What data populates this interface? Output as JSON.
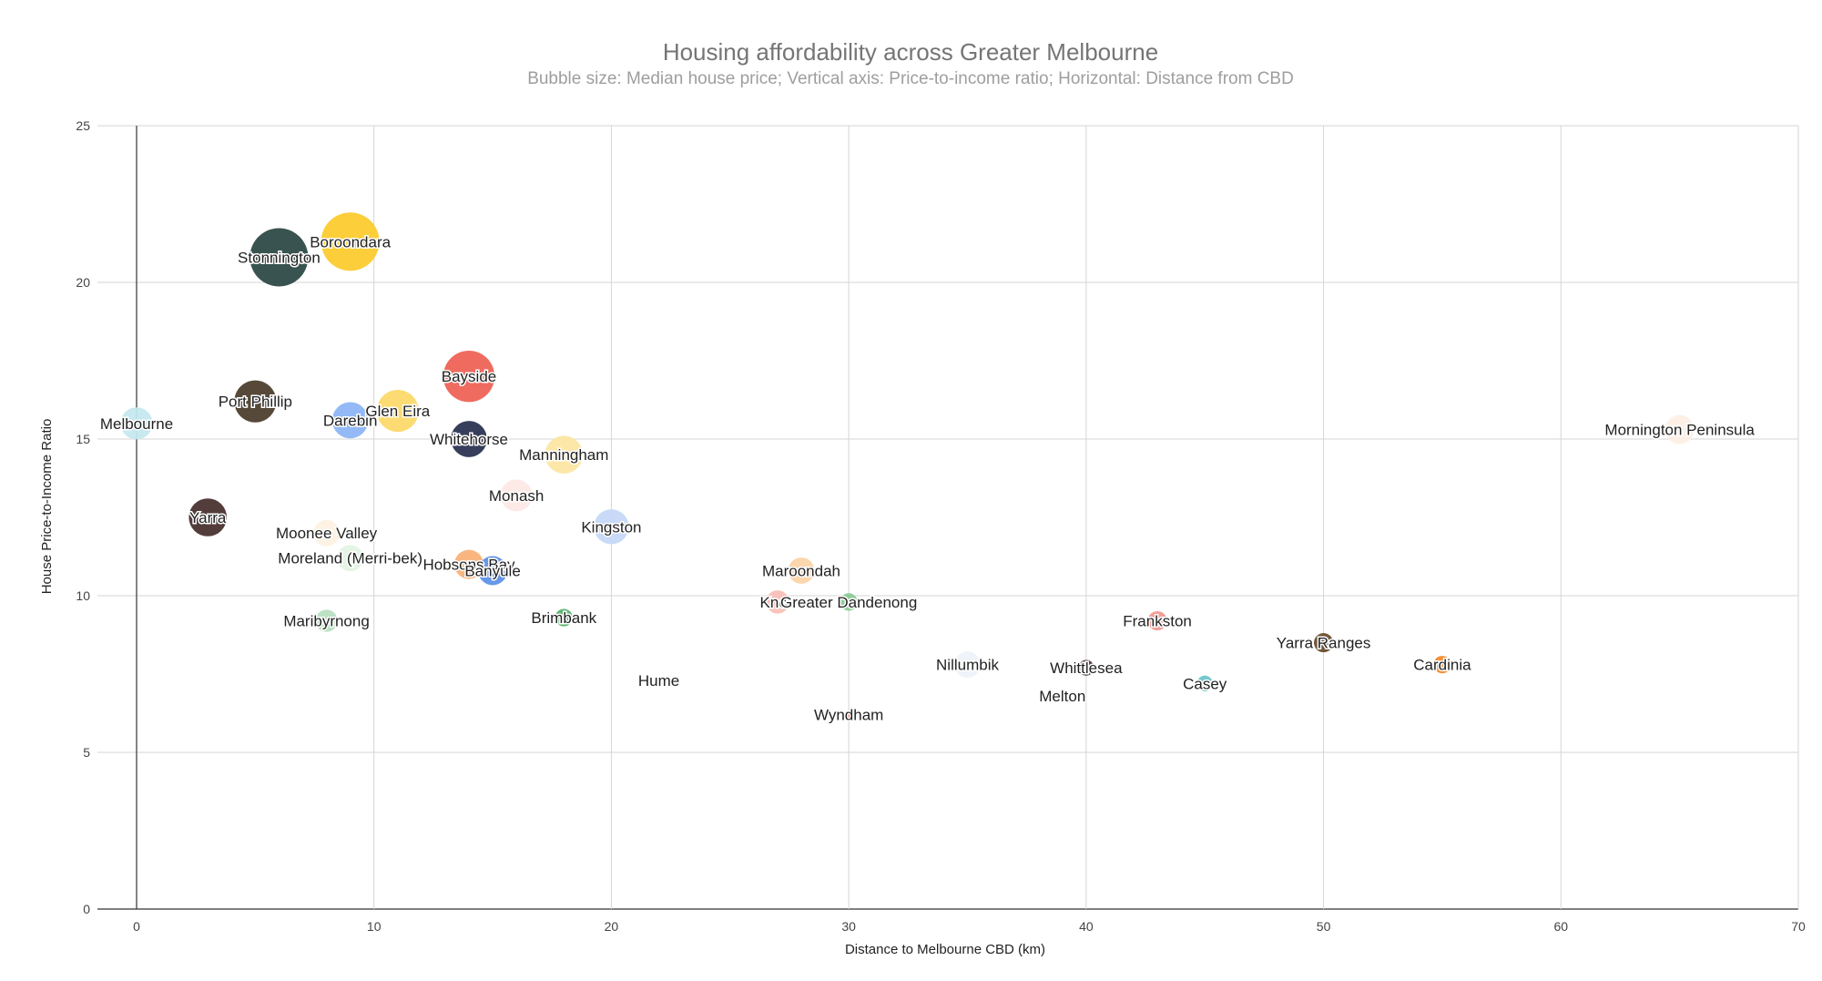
{
  "chart_data": {
    "type": "scatter",
    "title": "Housing affordability across Greater Melbourne",
    "subtitle": "Bubble size: Median house price; Vertical axis: Price-to-income ratio; Horizontal: Distance from CBD",
    "xlabel": "Distance to Melbourne CBD (km)",
    "ylabel": "House Price-to-Income Ratio",
    "xlim": [
      0,
      70
    ],
    "ylim": [
      0,
      25
    ],
    "xticks": [
      0,
      10,
      20,
      30,
      40,
      50,
      60,
      70
    ],
    "yticks": [
      0,
      5,
      10,
      15,
      20,
      25
    ],
    "grid": true,
    "bubble_size_basis": "Median house price",
    "points": [
      {
        "name": "Melbourne",
        "x": 0,
        "y": 15.5,
        "size": 0.55,
        "color": "#c4e8ee"
      },
      {
        "name": "Yarra",
        "x": 3,
        "y": 12.5,
        "size": 0.65,
        "color": "#4a3330"
      },
      {
        "name": "Port Phillip",
        "x": 5,
        "y": 16.2,
        "size": 0.72,
        "color": "#4e3f2e"
      },
      {
        "name": "Stonnington",
        "x": 6,
        "y": 20.8,
        "size": 1.0,
        "color": "#2e4a47"
      },
      {
        "name": "Moonee Valley",
        "x": 8,
        "y": 12.0,
        "size": 0.45,
        "color": "#fdf1e3"
      },
      {
        "name": "Maribyrnong",
        "x": 8,
        "y": 9.2,
        "size": 0.38,
        "color": "#b9dfc1"
      },
      {
        "name": "Boroondara",
        "x": 9,
        "y": 21.3,
        "size": 1.0,
        "color": "#fccb2f"
      },
      {
        "name": "Darebin",
        "x": 9,
        "y": 15.6,
        "size": 0.62,
        "color": "#8db5f5"
      },
      {
        "name": "Moreland (Merri-bek)",
        "x": 9,
        "y": 11.2,
        "size": 0.45,
        "color": "#e3f3e4"
      },
      {
        "name": "Glen Eira",
        "x": 11,
        "y": 15.9,
        "size": 0.72,
        "color": "#fdd96b"
      },
      {
        "name": "Bayside",
        "x": 14,
        "y": 17.0,
        "size": 0.88,
        "color": "#ee6357"
      },
      {
        "name": "Whitehorse",
        "x": 14,
        "y": 15.0,
        "size": 0.62,
        "color": "#2b3452"
      },
      {
        "name": "Hobsons Bay",
        "x": 14,
        "y": 11.0,
        "size": 0.5,
        "color": "#f9b27a"
      },
      {
        "name": "Banyule",
        "x": 15,
        "y": 10.8,
        "size": 0.5,
        "color": "#5e92e8"
      },
      {
        "name": "Monash",
        "x": 16,
        "y": 13.2,
        "size": 0.55,
        "color": "#fde9e6"
      },
      {
        "name": "Manningham",
        "x": 18,
        "y": 14.5,
        "size": 0.65,
        "color": "#fde6a3"
      },
      {
        "name": "Brimbank",
        "x": 18,
        "y": 9.3,
        "size": 0.3,
        "color": "#59b26c"
      },
      {
        "name": "Kingston",
        "x": 20,
        "y": 12.2,
        "size": 0.6,
        "color": "#c5d8f8"
      },
      {
        "name": "Hume",
        "x": 22,
        "y": 7.3,
        "size": 0.12,
        "color": "#e6f5f5"
      },
      {
        "name": "Knox",
        "x": 27,
        "y": 9.8,
        "size": 0.4,
        "color": "#f9c0b8"
      },
      {
        "name": "Maroondah",
        "x": 28,
        "y": 10.8,
        "size": 0.45,
        "color": "#fcd4a8"
      },
      {
        "name": "Greater Dandenong",
        "x": 30,
        "y": 9.8,
        "size": 0.3,
        "color": "#8acb93"
      },
      {
        "name": "Wyndham",
        "x": 30,
        "y": 6.2,
        "size": 0.12,
        "color": "#f07a7a"
      },
      {
        "name": "Nillumbik",
        "x": 35,
        "y": 7.8,
        "size": 0.45,
        "color": "#eef3fa"
      },
      {
        "name": "Melton",
        "x": 39,
        "y": 6.8,
        "size": 0.12,
        "color": "#f5f5f5"
      },
      {
        "name": "Whittlesea",
        "x": 40,
        "y": 7.7,
        "size": 0.27,
        "color": "#4e3b38"
      },
      {
        "name": "Frankston",
        "x": 43,
        "y": 9.2,
        "size": 0.33,
        "color": "#f29a95"
      },
      {
        "name": "Casey",
        "x": 45,
        "y": 7.2,
        "size": 0.27,
        "color": "#6ec6cc"
      },
      {
        "name": "Yarra Ranges",
        "x": 50,
        "y": 8.5,
        "size": 0.33,
        "color": "#6b4f2f"
      },
      {
        "name": "Cardinia",
        "x": 55,
        "y": 7.8,
        "size": 0.3,
        "color": "#f28a2e"
      },
      {
        "name": "Mornington Peninsula",
        "x": 65,
        "y": 15.3,
        "size": 0.5,
        "color": "#fdf0e6"
      }
    ]
  }
}
